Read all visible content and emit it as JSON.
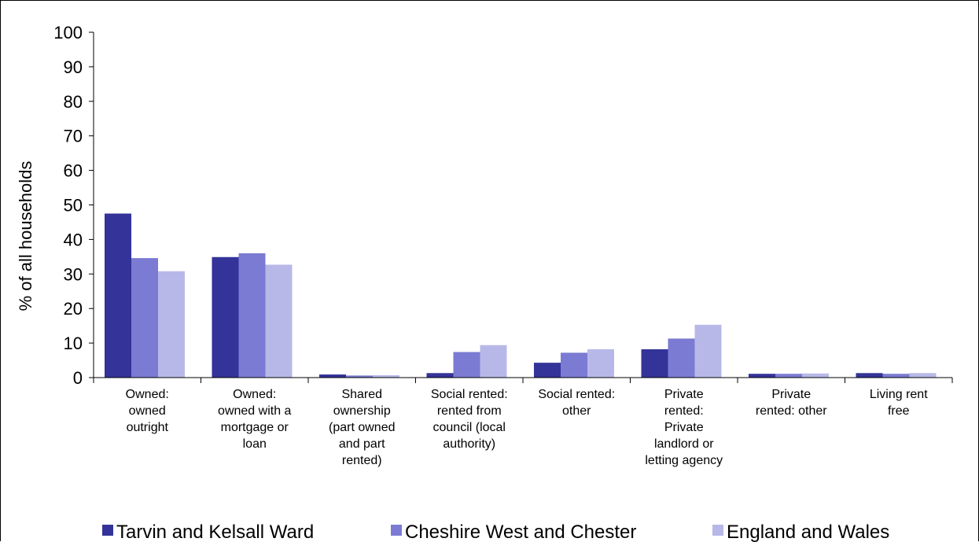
{
  "chart_data": {
    "type": "bar",
    "ylabel": "% of all households",
    "xlabel": "",
    "ylim": [
      0,
      100
    ],
    "yticks": [
      0,
      10,
      20,
      30,
      40,
      50,
      60,
      70,
      80,
      90,
      100
    ],
    "grid": false,
    "legend_position": "bottom",
    "categories": [
      "Owned: owned outright",
      "Owned: owned with a mortgage or loan",
      "Shared ownership (part owned and part rented)",
      "Social rented: rented from council (local authority)",
      "Social rented: other",
      "Private rented: Private landlord or letting agency",
      "Private rented: other",
      "Living rent free"
    ],
    "category_lines": [
      [
        "Owned:",
        "owned",
        "outright"
      ],
      [
        "Owned:",
        "owned with a",
        "mortgage or",
        "loan"
      ],
      [
        "Shared",
        "ownership",
        "(part owned",
        "and part",
        "rented)"
      ],
      [
        "Social rented:",
        "rented from",
        "council (local",
        "authority)"
      ],
      [
        "Social rented:",
        "other"
      ],
      [
        "Private",
        "rented:",
        "Private",
        "landlord or",
        "letting agency"
      ],
      [
        "Private",
        "rented: other"
      ],
      [
        "Living rent",
        "free"
      ]
    ],
    "series": [
      {
        "name": "Tarvin and Kelsall Ward",
        "color": "#333399",
        "values": [
          47.5,
          34.9,
          0.9,
          1.3,
          4.3,
          8.2,
          1.1,
          1.3
        ]
      },
      {
        "name": "Cheshire West and Chester",
        "color": "#7b7bd3",
        "values": [
          34.6,
          36.0,
          0.6,
          7.4,
          7.2,
          11.3,
          1.1,
          1.1
        ]
      },
      {
        "name": "England and Wales",
        "color": "#b8b8e8",
        "values": [
          30.8,
          32.7,
          0.7,
          9.4,
          8.2,
          15.3,
          1.2,
          1.3
        ]
      }
    ]
  }
}
